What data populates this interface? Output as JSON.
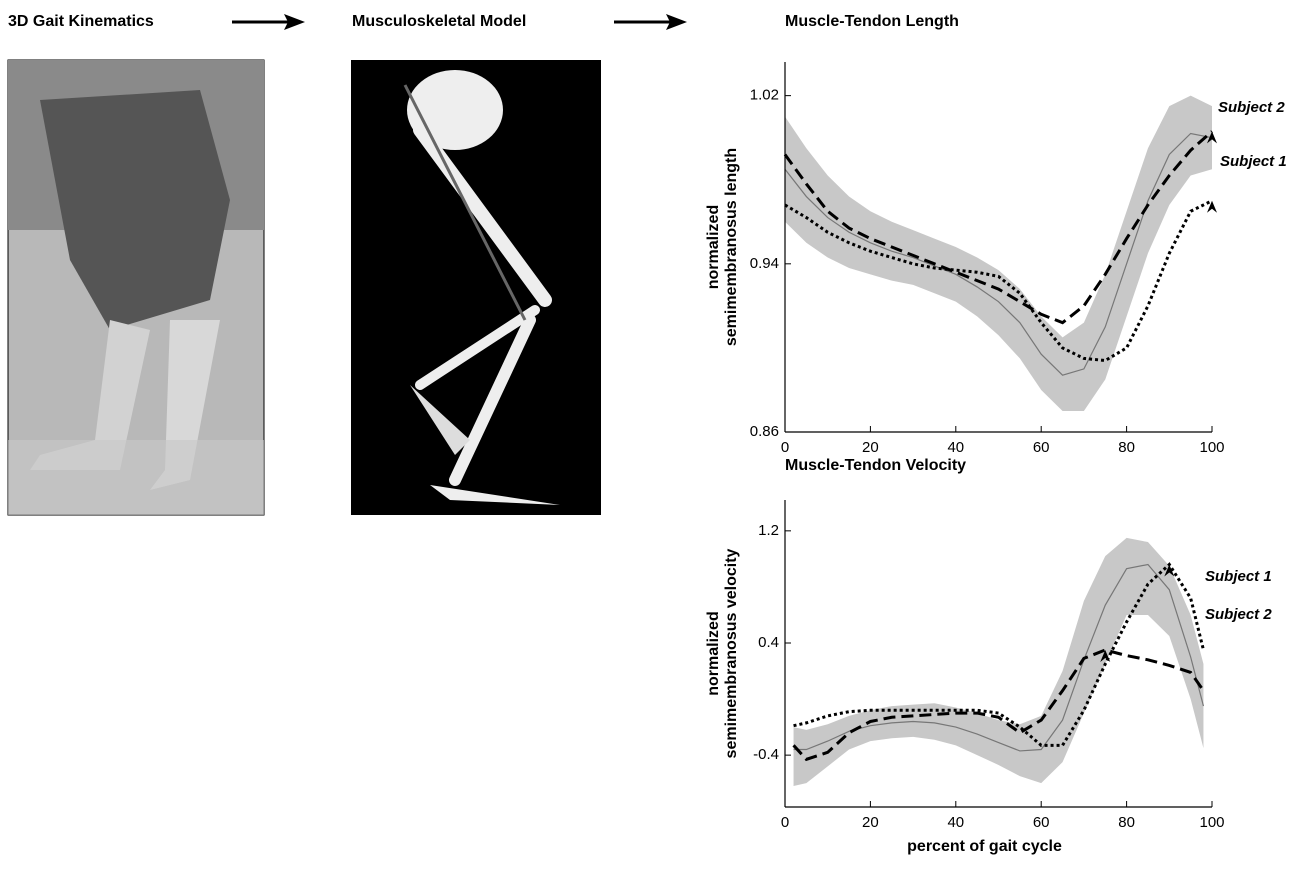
{
  "panels": [
    {
      "title": "3D Gait Kinematics"
    },
    {
      "title": "Musculoskeletal Model"
    }
  ],
  "chart_data": [
    {
      "type": "line",
      "title": "Muscle-Tendon Length",
      "ylabel": [
        "normalized",
        "semimembranosus length"
      ],
      "x": [
        0,
        5,
        10,
        15,
        20,
        25,
        30,
        35,
        40,
        45,
        50,
        55,
        60,
        65,
        70,
        75,
        80,
        85,
        90,
        95,
        100
      ],
      "band": {
        "color": "#c8c8c8",
        "upper": [
          1.01,
          0.995,
          0.982,
          0.972,
          0.965,
          0.96,
          0.956,
          0.952,
          0.948,
          0.943,
          0.937,
          0.928,
          0.915,
          0.905,
          0.912,
          0.935,
          0.965,
          0.995,
          1.015,
          1.02,
          1.015
        ],
        "lower": [
          0.96,
          0.95,
          0.943,
          0.938,
          0.935,
          0.932,
          0.93,
          0.926,
          0.922,
          0.915,
          0.906,
          0.895,
          0.88,
          0.87,
          0.87,
          0.885,
          0.915,
          0.945,
          0.968,
          0.982,
          0.985
        ]
      },
      "mean": {
        "color": "#777777",
        "values": [
          0.985,
          0.972,
          0.962,
          0.955,
          0.95,
          0.946,
          0.943,
          0.939,
          0.935,
          0.929,
          0.922,
          0.912,
          0.897,
          0.887,
          0.89,
          0.91,
          0.94,
          0.97,
          0.992,
          1.002,
          1.0
        ]
      },
      "series": [
        {
          "name": "Subject 2",
          "color": "#000000",
          "style": "dashed",
          "values": [
            0.992,
            0.978,
            0.965,
            0.957,
            0.952,
            0.948,
            0.944,
            0.94,
            0.936,
            0.932,
            0.928,
            0.922,
            0.916,
            0.912,
            0.92,
            0.935,
            0.952,
            0.968,
            0.982,
            0.994,
            1.003
          ]
        },
        {
          "name": "Subject 1",
          "color": "#000000",
          "style": "dotted",
          "values": [
            0.968,
            0.962,
            0.955,
            0.95,
            0.946,
            0.943,
            0.94,
            0.938,
            0.937,
            0.936,
            0.934,
            0.926,
            0.912,
            0.9,
            0.895,
            0.894,
            0.9,
            0.92,
            0.945,
            0.965,
            0.97
          ]
        }
      ],
      "xlim": [
        0,
        100
      ],
      "xticks": [
        0,
        20,
        40,
        60,
        80,
        100
      ],
      "ylim": [
        0.86,
        1.036
      ],
      "yticks": [
        0.86,
        0.94,
        1.02
      ]
    },
    {
      "type": "line",
      "title": "Muscle-Tendon Velocity",
      "ylabel": [
        "normalized",
        "semimembranosus velocity"
      ],
      "xlabel": "percent of gait cycle",
      "x": [
        2,
        5,
        10,
        15,
        20,
        25,
        30,
        35,
        40,
        45,
        50,
        55,
        60,
        65,
        70,
        75,
        80,
        85,
        90,
        95,
        98
      ],
      "band": {
        "color": "#c8c8c8",
        "upper": [
          -0.2,
          -0.22,
          -0.18,
          -0.12,
          -0.08,
          -0.05,
          -0.04,
          -0.03,
          -0.06,
          -0.1,
          -0.15,
          -0.18,
          -0.12,
          0.2,
          0.7,
          1.02,
          1.15,
          1.12,
          0.95,
          0.6,
          0.25
        ],
        "lower": [
          -0.62,
          -0.6,
          -0.48,
          -0.36,
          -0.3,
          -0.28,
          -0.27,
          -0.29,
          -0.33,
          -0.4,
          -0.47,
          -0.55,
          -0.6,
          -0.45,
          -0.1,
          0.25,
          0.6,
          0.6,
          0.45,
          0.0,
          -0.35
        ]
      },
      "mean": {
        "color": "#777777",
        "values": [
          -0.36,
          -0.36,
          -0.3,
          -0.23,
          -0.19,
          -0.17,
          -0.16,
          -0.17,
          -0.2,
          -0.25,
          -0.31,
          -0.37,
          -0.36,
          -0.15,
          0.28,
          0.67,
          0.93,
          0.96,
          0.78,
          0.3,
          -0.05
        ]
      },
      "series": [
        {
          "name": "Subject 1",
          "color": "#000000",
          "style": "dotted",
          "values": [
            -0.19,
            -0.17,
            -0.12,
            -0.09,
            -0.08,
            -0.08,
            -0.08,
            -0.08,
            -0.08,
            -0.08,
            -0.1,
            -0.2,
            -0.33,
            -0.33,
            -0.08,
            0.25,
            0.55,
            0.82,
            0.96,
            0.72,
            0.35
          ]
        },
        {
          "name": "Subject 2",
          "color": "#000000",
          "style": "dashed",
          "values": [
            -0.33,
            -0.43,
            -0.38,
            -0.24,
            -0.16,
            -0.13,
            -0.12,
            -0.11,
            -0.1,
            -0.1,
            -0.13,
            -0.24,
            -0.15,
            0.06,
            0.29,
            0.35,
            0.31,
            0.28,
            0.24,
            0.19,
            0.06
          ]
        }
      ],
      "xlim": [
        0,
        100
      ],
      "xticks": [
        0,
        20,
        40,
        60,
        80,
        100
      ],
      "ylim": [
        -0.77,
        1.42
      ],
      "yticks": [
        -0.4,
        0.4,
        1.2
      ]
    }
  ]
}
